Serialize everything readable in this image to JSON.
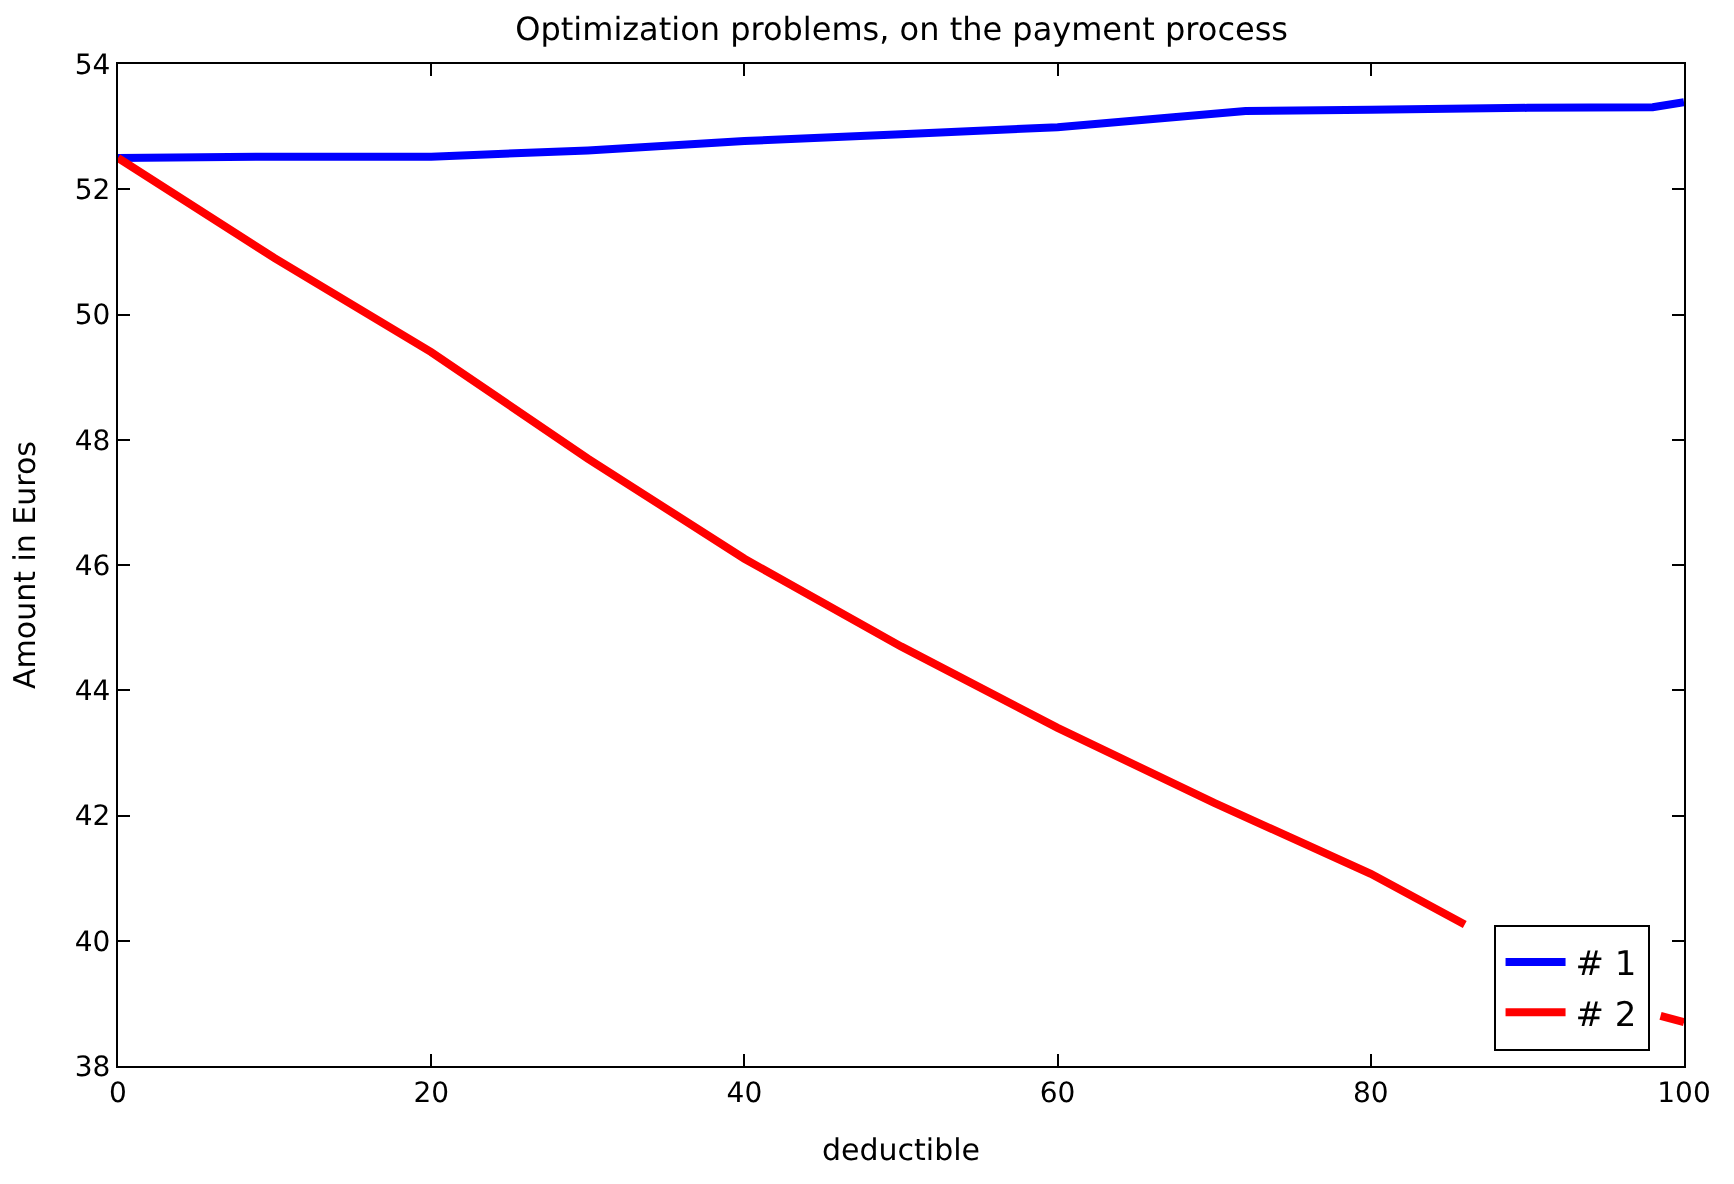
{
  "chart_data": {
    "type": "line",
    "title": "Optimization problems, on the payment process",
    "xlabel": "deductible",
    "ylabel": "Amount in Euros",
    "xlim": [
      0,
      100
    ],
    "xticks": [
      0,
      20,
      40,
      60,
      80,
      100
    ],
    "ylim": [
      38,
      54
    ],
    "yticks": [
      38,
      40,
      42,
      44,
      46,
      48,
      50,
      52,
      54
    ],
    "legend": "bottom right",
    "marker": "none",
    "line_style": "solid",
    "series": [
      {
        "name": "# 1",
        "color": "#0000ff",
        "x": [
          0,
          10,
          20,
          30,
          40,
          50,
          60,
          72,
          80,
          90,
          98,
          100
        ],
        "values": [
          52.5,
          52.52,
          52.52,
          52.62,
          52.77,
          52.88,
          52.99,
          53.25,
          53.27,
          53.3,
          53.31,
          53.39
        ]
      },
      {
        "name": "# 2",
        "color": "#ff0000",
        "x": [
          0,
          10,
          20,
          30,
          40,
          50,
          60,
          70,
          80,
          86,
          92,
          98.5,
          100
        ],
        "values": [
          52.5,
          50.9,
          49.4,
          47.7,
          46.1,
          44.7,
          43.4,
          42.2,
          41.07,
          40.26,
          null,
          38.8,
          38.7
        ]
      }
    ]
  }
}
